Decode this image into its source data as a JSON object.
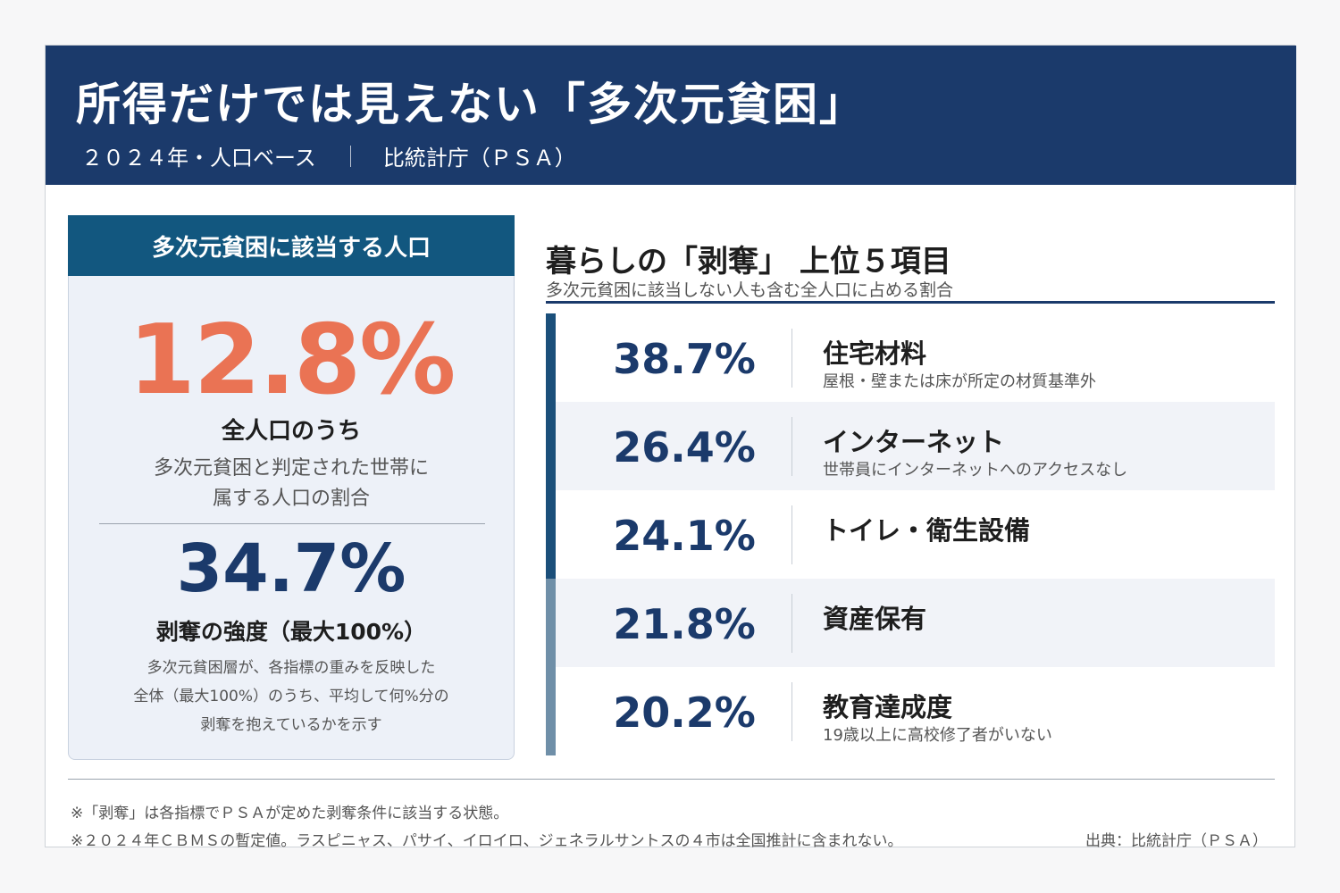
{
  "header": {
    "title": "所得だけでは見えない「多次元貧困」",
    "subtitle_left": "２０２４年・人口ベース",
    "subtitle_right": "比統計庁（ＰＳＡ）"
  },
  "left_panel": {
    "heading": "多次元貧困に該当する人口",
    "main_value": "12.8%",
    "main_label": "全人口のうち",
    "main_desc_1": "多次元貧困と判定された世帯に",
    "main_desc_2": "属する人口の割合",
    "second_value": "34.7%",
    "second_label": "剥奪の強度（最大100%）",
    "second_desc_1": "多次元貧困層が、各指標の重みを反映した",
    "second_desc_2": "全体（最大100%）のうち、平均して何%分の",
    "second_desc_3": "剥奪を抱えているかを示す"
  },
  "right_panel": {
    "title": "暮らしの「剥奪」 上位５項目",
    "subtitle": "多次元貧困に該当しない人も含む全人口に占める割合",
    "items": [
      {
        "value": "38.7%",
        "name": "住宅材料",
        "desc": "屋根・壁または床が所定の材質基準外",
        "bar_color": "#1b4f7a"
      },
      {
        "value": "26.4%",
        "name": "インターネット",
        "desc": "世帯員にインターネットへのアクセスなし",
        "bar_color": "#1b4f7a"
      },
      {
        "value": "24.1%",
        "name": "トイレ・衛生設備",
        "desc": "",
        "bar_color": "#1b4f7a"
      },
      {
        "value": "21.8%",
        "name": "資産保有",
        "desc": "",
        "bar_color": "#6f8fa8"
      },
      {
        "value": "20.2%",
        "name": "教育達成度",
        "desc": "19歳以上に高校修了者がいない",
        "bar_color": "#6f8fa8"
      }
    ]
  },
  "footer": {
    "note_1": "※「剥奪」は各指標でＰＳＡが定めた剥奪条件に該当する状態。",
    "note_2": "※２０２４年ＣＢＭＳの暫定値。ラスピニャス、パサイ、イロイロ、ジェネラルサントスの４市は全国推計に含まれない。",
    "source": "出典：比統計庁（ＰＳＡ）"
  }
}
